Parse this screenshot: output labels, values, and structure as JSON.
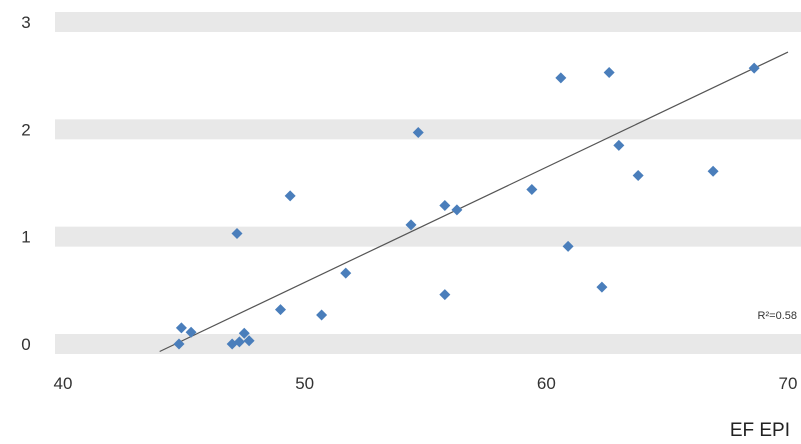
{
  "chart_data": {
    "type": "scatter",
    "xlabel": "EF EPI",
    "ylabel": "",
    "xlim": [
      40,
      70
    ],
    "ylim": [
      0,
      3
    ],
    "x_ticks": [
      "40",
      "50",
      "60",
      "70"
    ],
    "y_ticks": [
      "0",
      "1",
      "2",
      "3"
    ],
    "grid": "alternating horizontal bands",
    "marker": "diamond",
    "marker_color": "#4a7ebb",
    "band_color": "#e8e8e8",
    "trendline": {
      "type": "linear",
      "color": "#555555",
      "x": [
        44,
        70
      ],
      "y": [
        -0.07,
        2.72
      ],
      "label": "R²=0.58"
    },
    "points": [
      {
        "x": 44.9,
        "y": 0.15
      },
      {
        "x": 44.8,
        "y": 0.0
      },
      {
        "x": 45.3,
        "y": 0.11
      },
      {
        "x": 47.0,
        "y": 0.0
      },
      {
        "x": 47.3,
        "y": 0.02
      },
      {
        "x": 47.5,
        "y": 0.1
      },
      {
        "x": 47.7,
        "y": 0.03
      },
      {
        "x": 47.2,
        "y": 1.03
      },
      {
        "x": 49.0,
        "y": 0.32
      },
      {
        "x": 49.4,
        "y": 1.38
      },
      {
        "x": 50.7,
        "y": 0.27
      },
      {
        "x": 51.7,
        "y": 0.66
      },
      {
        "x": 54.4,
        "y": 1.11
      },
      {
        "x": 54.7,
        "y": 1.97
      },
      {
        "x": 55.8,
        "y": 1.29
      },
      {
        "x": 56.3,
        "y": 1.25
      },
      {
        "x": 55.8,
        "y": 0.46
      },
      {
        "x": 59.4,
        "y": 1.44
      },
      {
        "x": 60.6,
        "y": 2.48
      },
      {
        "x": 60.9,
        "y": 0.91
      },
      {
        "x": 62.6,
        "y": 2.53
      },
      {
        "x": 63.0,
        "y": 1.85
      },
      {
        "x": 62.3,
        "y": 0.53
      },
      {
        "x": 63.8,
        "y": 1.57
      },
      {
        "x": 66.9,
        "y": 1.61
      },
      {
        "x": 68.6,
        "y": 2.57
      }
    ]
  }
}
